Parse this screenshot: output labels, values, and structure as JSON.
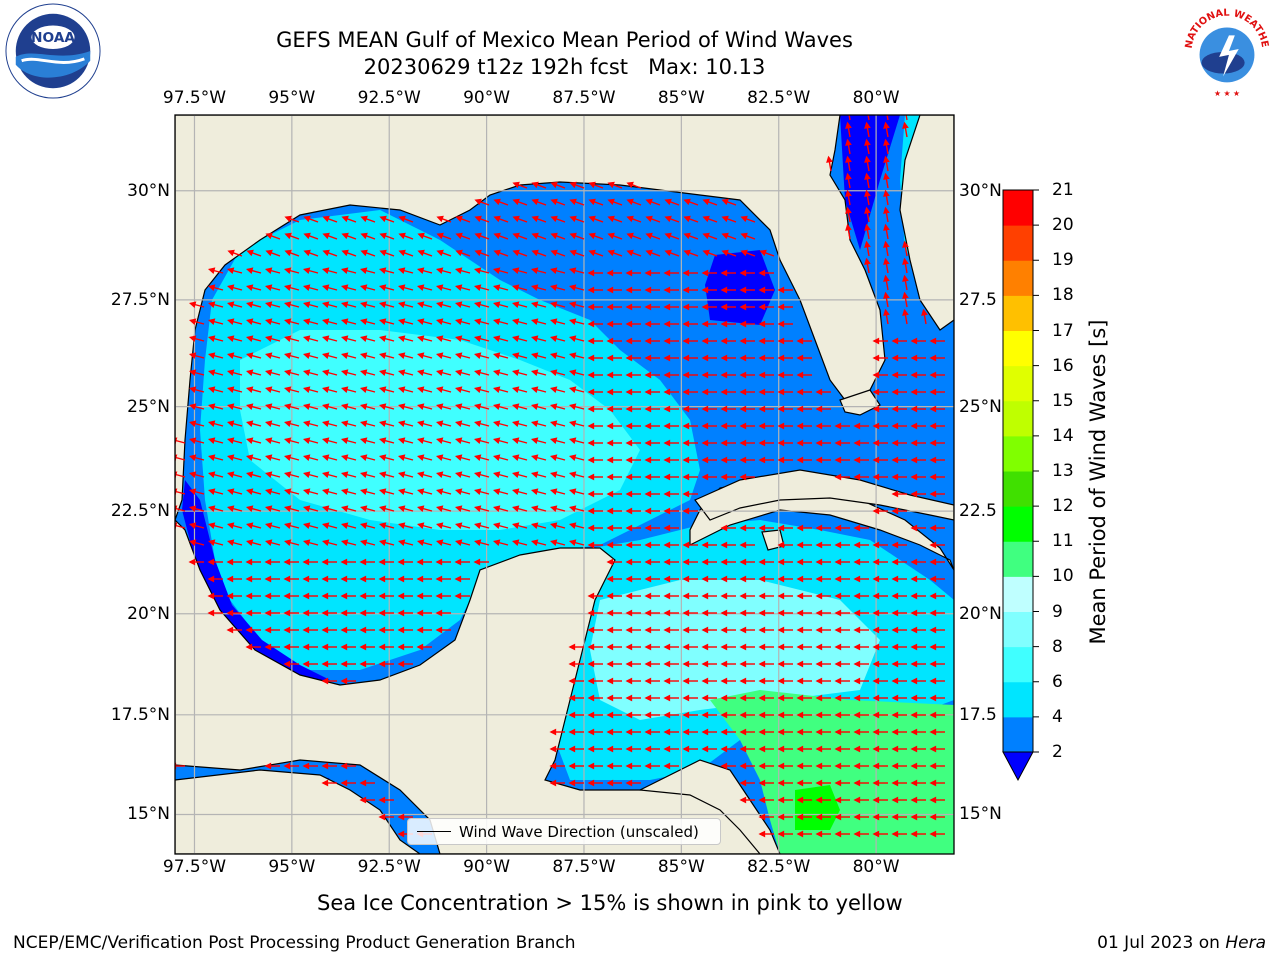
{
  "title": {
    "line1": "GEFS MEAN Gulf of Mexico Mean Period of Wind Waves",
    "line2": "20230629 t12z 192h fcst   Max: 10.13"
  },
  "logos": {
    "noaa": {
      "text": "NOAA",
      "ring_text": "NATIONAL OCEANIC AND ATMOSPHERIC ADMINISTRATION · U.S. DEPARTMENT OF COMMERCE"
    },
    "nws": {
      "ring_text": "NATIONAL WEATHER SERVICE"
    }
  },
  "map": {
    "lon_ticks": [
      "97.5°W",
      "95°W",
      "92.5°W",
      "90°W",
      "87.5°W",
      "85°W",
      "82.5°W",
      "80°W"
    ],
    "lon_values": [
      -97.5,
      -95,
      -92.5,
      -90,
      -87.5,
      -85,
      -82.5,
      -80
    ],
    "lat_ticks_left": [
      "30°N",
      "27.5°N",
      "25°N",
      "22.5°N",
      "20°N",
      "17.5°N",
      "15°N"
    ],
    "lat_ticks_right": [
      "30°N",
      "27.5",
      "25°N",
      "22.5",
      "20°N",
      "17.5",
      "15°N"
    ],
    "lat_values": [
      30,
      27.5,
      25,
      22.5,
      20,
      17.5,
      15
    ],
    "extent": {
      "lon_min": -98,
      "lon_max": -78,
      "lat_min": 14,
      "lat_max": 31.7
    },
    "arrow_color": "#ff0000",
    "land_color": "#efeddc",
    "grid_color": "#b4b4b4"
  },
  "colorbar": {
    "label": "Mean Period of Wind Waves [s]",
    "ticks": [
      "2",
      "4",
      "6",
      "8",
      "9",
      "10",
      "11",
      "12",
      "13",
      "14",
      "15",
      "16",
      "17",
      "18",
      "19",
      "20",
      "21"
    ],
    "colors": [
      "#0000ff",
      "#0080ff",
      "#00e5ff",
      "#40ffff",
      "#80ffff",
      "#bfffff",
      "#40ff80",
      "#00ff00",
      "#40e000",
      "#80ff00",
      "#bfff00",
      "#e0ff00",
      "#ffff00",
      "#ffc000",
      "#ff8000",
      "#ff4000",
      "#ff0000"
    ]
  },
  "legend": {
    "label": "Wind Wave Direction (unscaled)"
  },
  "note": "Sea Ice Concentration > 15% is shown in pink to yellow",
  "footer": {
    "credit": "NCEP/EMC/Verification Post Processing Product Generation Branch",
    "date": "01 Jul 2023 on",
    "system": "Hera"
  }
}
